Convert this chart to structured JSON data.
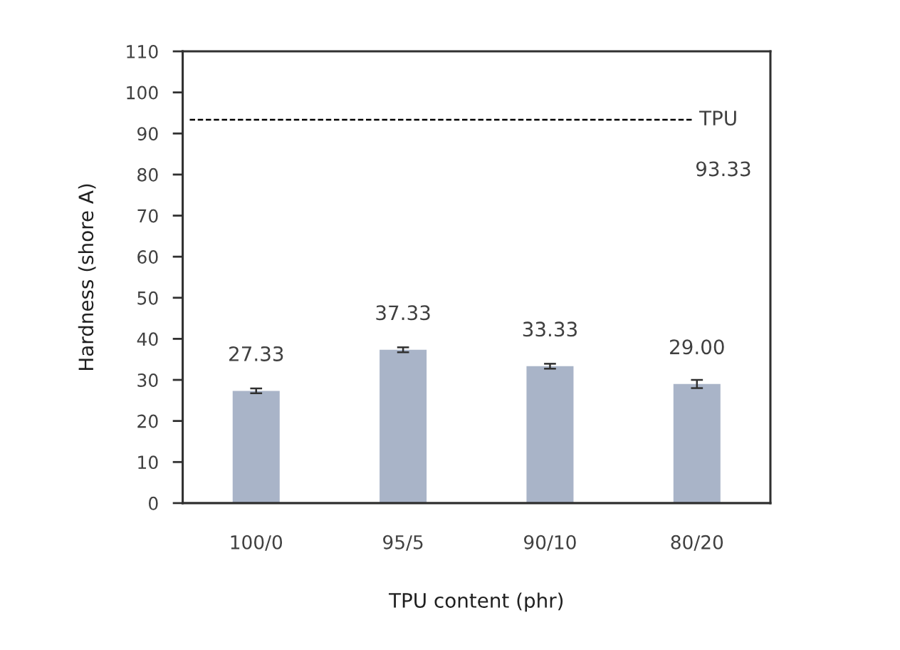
{
  "chart_data": {
    "type": "bar",
    "xlabel": "TPU content (phr)",
    "ylabel": "Hardness (shore A)",
    "categories": [
      "100/0",
      "95/5",
      "90/10",
      "80/20"
    ],
    "values": [
      27.33,
      37.33,
      33.33,
      29.0
    ],
    "errors": [
      0.6,
      0.6,
      0.6,
      1.0
    ],
    "color": "#a9b4c8",
    "value_labels": [
      "27.33",
      "37.33",
      "33.33",
      "29.00"
    ],
    "ylim": [
      0,
      110
    ],
    "yticks": [
      0,
      10,
      20,
      30,
      40,
      50,
      60,
      70,
      80,
      90,
      100,
      110
    ],
    "ref_lines": [
      {
        "axis": "y",
        "value": 93.33,
        "label": "TPU",
        "line_style": "dashed",
        "color": "#000000"
      }
    ],
    "annotations": [
      "93.33"
    ],
    "grid": false,
    "legend": false
  }
}
